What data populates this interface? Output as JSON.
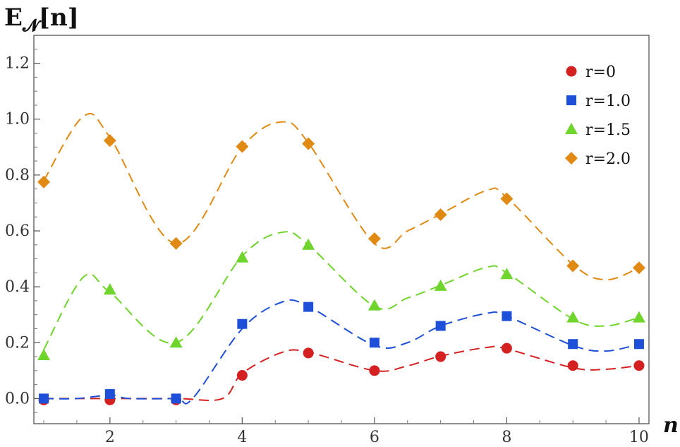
{
  "chart_data": {
    "type": "scatter",
    "ylabel_main": "E",
    "ylabel_sub": "𝓝",
    "ylabel_arg": "[n]",
    "xlabel": "n",
    "xlim": [
      0.85,
      10.15
    ],
    "ylim": [
      -0.09,
      1.3
    ],
    "xticks": [
      2,
      4,
      6,
      8,
      10
    ],
    "yticks": [
      0.0,
      0.2,
      0.4,
      0.6,
      0.8,
      1.0,
      1.2
    ],
    "yticklabels": [
      "0.0",
      "0.2",
      "0.4",
      "0.6",
      "0.8",
      "1.0",
      "1.2"
    ],
    "legend_position": "top-right",
    "x": [
      1,
      2,
      3,
      4,
      5,
      6,
      7,
      8,
      9,
      10
    ],
    "series": [
      {
        "name": "r=0",
        "marker": "circle",
        "color": "#d42020",
        "values": [
          -0.005,
          -0.005,
          -0.005,
          0.083,
          0.163,
          0.1,
          0.15,
          0.18,
          0.118,
          0.118
        ],
        "curve": [
          [
            1,
            0
          ],
          [
            2,
            0
          ],
          [
            3,
            0
          ],
          [
            3.7,
            0
          ],
          [
            4,
            0.09
          ],
          [
            4.6,
            0.165
          ],
          [
            5,
            0.166
          ],
          [
            6,
            0.1
          ],
          [
            6.5,
            0.117
          ],
          [
            7,
            0.152
          ],
          [
            7.7,
            0.183
          ],
          [
            8,
            0.178
          ],
          [
            9,
            0.11
          ],
          [
            9.5,
            0.105
          ],
          [
            10,
            0.118
          ]
        ]
      },
      {
        "name": "r=1.0",
        "marker": "square",
        "color": "#1e4fd8",
        "values": [
          0.0,
          0.016,
          0.0,
          0.267,
          0.328,
          0.2,
          0.26,
          0.295,
          0.195,
          0.195
        ],
        "curve": [
          [
            1,
            0
          ],
          [
            1.5,
            0
          ],
          [
            2,
            0.012
          ],
          [
            2.3,
            0
          ],
          [
            3,
            0
          ],
          [
            3.25,
            0
          ],
          [
            4,
            0.25
          ],
          [
            4.6,
            0.345
          ],
          [
            5,
            0.33
          ],
          [
            6,
            0.19
          ],
          [
            6.5,
            0.2
          ],
          [
            7,
            0.26
          ],
          [
            7.7,
            0.305
          ],
          [
            8,
            0.295
          ],
          [
            9,
            0.19
          ],
          [
            9.5,
            0.17
          ],
          [
            10,
            0.195
          ]
        ]
      },
      {
        "name": "r=1.5",
        "marker": "triangle",
        "color": "#6fd42b",
        "values": [
          0.155,
          0.39,
          0.2,
          0.505,
          0.55,
          0.333,
          0.403,
          0.445,
          0.29,
          0.29
        ],
        "curve": [
          [
            1,
            0.175
          ],
          [
            1.6,
            0.435
          ],
          [
            2,
            0.38
          ],
          [
            3,
            0.2
          ],
          [
            4,
            0.51
          ],
          [
            4.6,
            0.595
          ],
          [
            5,
            0.55
          ],
          [
            6,
            0.33
          ],
          [
            6.5,
            0.36
          ],
          [
            7,
            0.405
          ],
          [
            7.7,
            0.47
          ],
          [
            8,
            0.45
          ],
          [
            9,
            0.285
          ],
          [
            9.5,
            0.26
          ],
          [
            10,
            0.29
          ]
        ]
      },
      {
        "name": "r=2.0",
        "marker": "diamond",
        "color": "#e08a14",
        "values": [
          0.775,
          0.923,
          0.555,
          0.902,
          0.912,
          0.572,
          0.658,
          0.715,
          0.475,
          0.468
        ],
        "curve": [
          [
            1,
            0.78
          ],
          [
            1.6,
            1.01
          ],
          [
            2,
            0.935
          ],
          [
            3,
            0.555
          ],
          [
            4,
            0.9
          ],
          [
            4.6,
            0.99
          ],
          [
            5,
            0.915
          ],
          [
            6,
            0.555
          ],
          [
            6.5,
            0.6
          ],
          [
            7,
            0.66
          ],
          [
            7.7,
            0.745
          ],
          [
            8,
            0.72
          ],
          [
            9,
            0.48
          ],
          [
            9.5,
            0.425
          ],
          [
            10,
            0.468
          ]
        ]
      }
    ]
  }
}
